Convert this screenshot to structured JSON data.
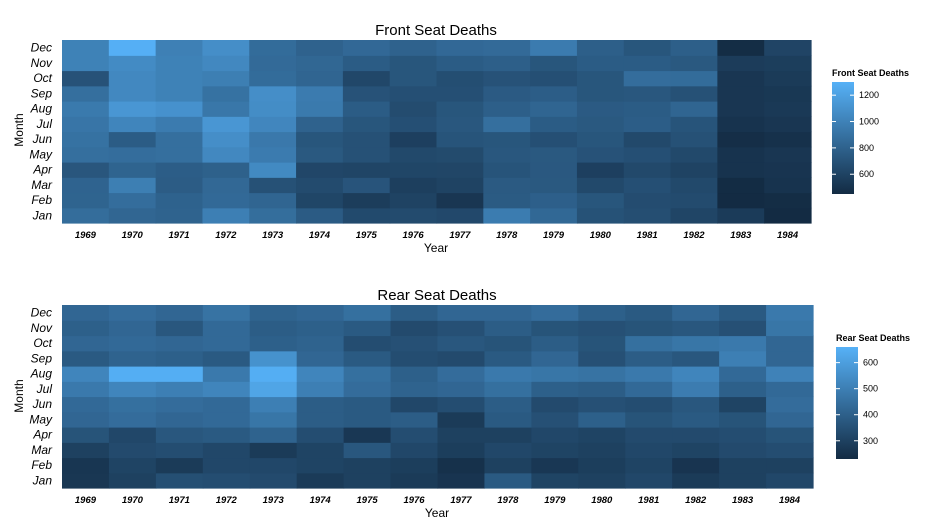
{
  "colors": {
    "low": "#132B43",
    "high": "#56B1F7"
  },
  "shared": {
    "years": [
      "1969",
      "1970",
      "1971",
      "1972",
      "1973",
      "1974",
      "1975",
      "1976",
      "1977",
      "1978",
      "1979",
      "1980",
      "1981",
      "1982",
      "1983",
      "1984"
    ],
    "months": [
      "Jan",
      "Feb",
      "Mar",
      "Apr",
      "May",
      "Jun",
      "Jul",
      "Aug",
      "Sep",
      "Oct",
      "Nov",
      "Dec"
    ]
  },
  "chart_data": [
    {
      "type": "heatmap",
      "title": "Front Seat Deaths",
      "xlabel": "Year",
      "ylabel": "Month",
      "legend_title": "Front Seat Deaths",
      "legend_placement": "right",
      "legend_ticks": [
        600,
        800,
        1000,
        1200
      ],
      "value_range": [
        450,
        1300
      ],
      "grid": false,
      "values": [
        [
          867,
          825,
          806,
          985,
          872,
          757,
          646,
          654,
          637,
          963,
          836,
          697,
          673,
          613,
          552,
          420
        ],
        [
          809,
          869,
          798,
          845,
          820,
          620,
          564,
          600,
          522,
          753,
          783,
          720,
          661,
          655,
          450,
          460
        ],
        [
          807,
          980,
          761,
          837,
          689,
          655,
          713,
          578,
          601,
          749,
          740,
          640,
          680,
          640,
          455,
          500
        ],
        [
          724,
          809,
          770,
          791,
          1050,
          623,
          615,
          620,
          622,
          709,
          738,
          580,
          640,
          600,
          500,
          510
        ],
        [
          880,
          870,
          880,
          1040,
          960,
          740,
          690,
          640,
          650,
          730,
          740,
          700,
          680,
          640,
          500,
          520
        ],
        [
          900,
          760,
          880,
          1080,
          940,
          720,
          690,
          580,
          710,
          720,
          680,
          720,
          640,
          690,
          470,
          490
        ],
        [
          920,
          1020,
          960,
          1130,
          1030,
          800,
          720,
          680,
          730,
          880,
          760,
          740,
          770,
          710,
          500,
          520
        ],
        [
          950,
          1130,
          1100,
          930,
          1070,
          950,
          760,
          660,
          720,
          780,
          820,
          750,
          760,
          820,
          520,
          540
        ],
        [
          880,
          1040,
          1000,
          900,
          1080,
          960,
          700,
          680,
          680,
          750,
          770,
          720,
          730,
          690,
          520,
          530
        ],
        [
          700,
          1040,
          1000,
          980,
          860,
          820,
          630,
          720,
          670,
          700,
          680,
          720,
          870,
          860,
          520,
          550
        ],
        [
          1000,
          1060,
          1000,
          1040,
          850,
          830,
          760,
          720,
          760,
          780,
          720,
          760,
          760,
          740,
          560,
          570
        ],
        [
          1000,
          1290,
          990,
          1080,
          860,
          800,
          840,
          800,
          840,
          850,
          960,
          780,
          720,
          780,
          460,
          610
        ]
      ]
    },
    {
      "type": "heatmap",
      "title": "Rear Seat Deaths",
      "xlabel": "Year",
      "ylabel": "Month",
      "legend_title": "Rear Seat Deaths",
      "legend_placement": "right",
      "legend_ticks": [
        300,
        400,
        500,
        600
      ],
      "value_range": [
        230,
        660
      ],
      "grid": false,
      "values": [
        [
          269,
          300,
          345,
          340,
          330,
          280,
          300,
          280,
          260,
          380,
          310,
          300,
          320,
          280,
          300,
          320
        ],
        [
          265,
          310,
          280,
          320,
          320,
          310,
          300,
          290,
          250,
          300,
          270,
          290,
          310,
          260,
          300,
          300
        ],
        [
          300,
          330,
          340,
          320,
          280,
          310,
          370,
          320,
          290,
          320,
          310,
          300,
          320,
          310,
          330,
          340
        ],
        [
          360,
          320,
          370,
          380,
          410,
          340,
          270,
          340,
          300,
          300,
          320,
          310,
          330,
          330,
          340,
          360
        ],
        [
          420,
          440,
          420,
          430,
          470,
          390,
          380,
          390,
          280,
          380,
          350,
          400,
          360,
          380,
          360,
          420
        ],
        [
          430,
          450,
          440,
          430,
          500,
          390,
          380,
          320,
          340,
          390,
          330,
          350,
          340,
          370,
          310,
          440
        ],
        [
          480,
          520,
          500,
          520,
          620,
          500,
          440,
          410,
          420,
          450,
          400,
          390,
          430,
          490,
          400,
          430
        ],
        [
          520,
          650,
          650,
          480,
          650,
          520,
          450,
          400,
          440,
          480,
          470,
          460,
          480,
          520,
          430,
          510
        ],
        [
          380,
          410,
          400,
          380,
          560,
          420,
          380,
          340,
          330,
          380,
          420,
          350,
          390,
          370,
          500,
          420
        ],
        [
          420,
          430,
          420,
          430,
          400,
          410,
          340,
          350,
          370,
          360,
          390,
          360,
          450,
          470,
          480,
          420
        ],
        [
          400,
          420,
          370,
          430,
          390,
          400,
          380,
          330,
          350,
          390,
          360,
          350,
          360,
          370,
          350,
          470
        ],
        [
          420,
          440,
          420,
          460,
          410,
          420,
          450,
          390,
          420,
          420,
          440,
          400,
          380,
          420,
          380,
          480
        ]
      ]
    }
  ]
}
